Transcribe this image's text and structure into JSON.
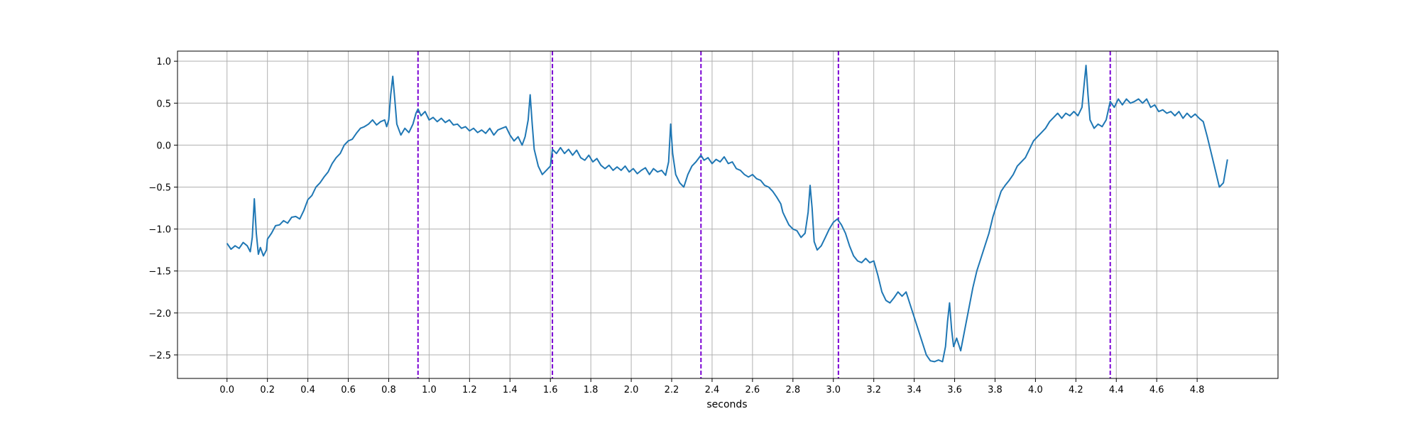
{
  "chart_data": {
    "type": "line",
    "title": "",
    "xlabel": "seconds",
    "ylabel": "",
    "xlim": [
      -0.245,
      5.2
    ],
    "ylim": [
      -2.78,
      1.12
    ],
    "grid": true,
    "x_ticks": [
      0.0,
      0.2,
      0.4,
      0.6,
      0.8,
      1.0,
      1.2,
      1.4,
      1.6,
      1.8,
      2.0,
      2.2,
      2.4,
      2.6,
      2.8,
      3.0,
      3.2,
      3.4,
      3.6,
      3.8,
      4.0,
      4.2,
      4.4,
      4.6,
      4.8
    ],
    "x_tick_labels": [
      "0.0",
      "0.2",
      "0.4",
      "0.6",
      "0.8",
      "1.0",
      "1.2",
      "1.4",
      "1.6",
      "1.8",
      "2.0",
      "2.2",
      "2.4",
      "2.6",
      "2.8",
      "3.0",
      "3.2",
      "3.4",
      "3.6",
      "3.8",
      "4.0",
      "4.2",
      "4.4",
      "4.6",
      "4.8"
    ],
    "y_ticks": [
      1.0,
      0.5,
      0.0,
      -0.5,
      -1.0,
      -1.5,
      -2.0,
      -2.5
    ],
    "y_tick_labels": [
      "1.0",
      "0.5",
      "0.0",
      "−0.5",
      "−1.0",
      "−1.5",
      "−2.0",
      "−2.5"
    ],
    "vertical_markers": {
      "x": [
        0.945,
        1.61,
        2.345,
        3.025,
        4.37
      ],
      "color": "#7b00d4",
      "style": "dashed"
    },
    "series": [
      {
        "color": "#1f77b4",
        "points": [
          [
            0.0,
            -1.17
          ],
          [
            0.02,
            -1.24
          ],
          [
            0.04,
            -1.2
          ],
          [
            0.06,
            -1.23
          ],
          [
            0.08,
            -1.16
          ],
          [
            0.1,
            -1.2
          ],
          [
            0.115,
            -1.27
          ],
          [
            0.125,
            -1.1
          ],
          [
            0.135,
            -0.64
          ],
          [
            0.145,
            -1.05
          ],
          [
            0.155,
            -1.3
          ],
          [
            0.165,
            -1.22
          ],
          [
            0.18,
            -1.32
          ],
          [
            0.195,
            -1.25
          ],
          [
            0.2,
            -1.12
          ],
          [
            0.22,
            -1.05
          ],
          [
            0.24,
            -0.96
          ],
          [
            0.26,
            -0.95
          ],
          [
            0.28,
            -0.9
          ],
          [
            0.3,
            -0.93
          ],
          [
            0.32,
            -0.86
          ],
          [
            0.34,
            -0.85
          ],
          [
            0.36,
            -0.88
          ],
          [
            0.38,
            -0.78
          ],
          [
            0.4,
            -0.65
          ],
          [
            0.42,
            -0.6
          ],
          [
            0.44,
            -0.5
          ],
          [
            0.46,
            -0.45
          ],
          [
            0.48,
            -0.38
          ],
          [
            0.5,
            -0.32
          ],
          [
            0.52,
            -0.22
          ],
          [
            0.54,
            -0.15
          ],
          [
            0.56,
            -0.1
          ],
          [
            0.58,
            0.0
          ],
          [
            0.6,
            0.05
          ],
          [
            0.62,
            0.07
          ],
          [
            0.64,
            0.14
          ],
          [
            0.66,
            0.2
          ],
          [
            0.68,
            0.22
          ],
          [
            0.7,
            0.25
          ],
          [
            0.72,
            0.3
          ],
          [
            0.74,
            0.24
          ],
          [
            0.76,
            0.28
          ],
          [
            0.78,
            0.3
          ],
          [
            0.79,
            0.22
          ],
          [
            0.8,
            0.3
          ],
          [
            0.81,
            0.6
          ],
          [
            0.82,
            0.82
          ],
          [
            0.83,
            0.55
          ],
          [
            0.84,
            0.25
          ],
          [
            0.86,
            0.12
          ],
          [
            0.88,
            0.2
          ],
          [
            0.9,
            0.15
          ],
          [
            0.92,
            0.25
          ],
          [
            0.935,
            0.38
          ],
          [
            0.945,
            0.43
          ],
          [
            0.96,
            0.35
          ],
          [
            0.98,
            0.4
          ],
          [
            1.0,
            0.3
          ],
          [
            1.02,
            0.33
          ],
          [
            1.04,
            0.28
          ],
          [
            1.06,
            0.32
          ],
          [
            1.08,
            0.27
          ],
          [
            1.1,
            0.3
          ],
          [
            1.12,
            0.24
          ],
          [
            1.14,
            0.25
          ],
          [
            1.16,
            0.2
          ],
          [
            1.18,
            0.22
          ],
          [
            1.2,
            0.17
          ],
          [
            1.22,
            0.2
          ],
          [
            1.24,
            0.15
          ],
          [
            1.26,
            0.18
          ],
          [
            1.28,
            0.14
          ],
          [
            1.3,
            0.2
          ],
          [
            1.32,
            0.12
          ],
          [
            1.34,
            0.18
          ],
          [
            1.36,
            0.2
          ],
          [
            1.38,
            0.22
          ],
          [
            1.4,
            0.12
          ],
          [
            1.42,
            0.05
          ],
          [
            1.44,
            0.1
          ],
          [
            1.46,
            0.0
          ],
          [
            1.475,
            0.1
          ],
          [
            1.49,
            0.3
          ],
          [
            1.5,
            0.6
          ],
          [
            1.51,
            0.25
          ],
          [
            1.52,
            -0.05
          ],
          [
            1.54,
            -0.25
          ],
          [
            1.56,
            -0.35
          ],
          [
            1.58,
            -0.3
          ],
          [
            1.6,
            -0.25
          ],
          [
            1.61,
            -0.05
          ],
          [
            1.63,
            -0.1
          ],
          [
            1.65,
            -0.03
          ],
          [
            1.67,
            -0.1
          ],
          [
            1.69,
            -0.05
          ],
          [
            1.71,
            -0.12
          ],
          [
            1.73,
            -0.06
          ],
          [
            1.75,
            -0.15
          ],
          [
            1.77,
            -0.18
          ],
          [
            1.79,
            -0.12
          ],
          [
            1.81,
            -0.2
          ],
          [
            1.83,
            -0.16
          ],
          [
            1.85,
            -0.24
          ],
          [
            1.87,
            -0.28
          ],
          [
            1.89,
            -0.24
          ],
          [
            1.91,
            -0.3
          ],
          [
            1.93,
            -0.26
          ],
          [
            1.95,
            -0.3
          ],
          [
            1.97,
            -0.25
          ],
          [
            1.99,
            -0.32
          ],
          [
            2.01,
            -0.28
          ],
          [
            2.03,
            -0.34
          ],
          [
            2.05,
            -0.3
          ],
          [
            2.07,
            -0.27
          ],
          [
            2.09,
            -0.35
          ],
          [
            2.11,
            -0.28
          ],
          [
            2.13,
            -0.32
          ],
          [
            2.15,
            -0.3
          ],
          [
            2.17,
            -0.36
          ],
          [
            2.185,
            -0.2
          ],
          [
            2.195,
            0.25
          ],
          [
            2.205,
            -0.1
          ],
          [
            2.22,
            -0.35
          ],
          [
            2.24,
            -0.45
          ],
          [
            2.26,
            -0.5
          ],
          [
            2.28,
            -0.35
          ],
          [
            2.3,
            -0.25
          ],
          [
            2.32,
            -0.2
          ],
          [
            2.345,
            -0.12
          ],
          [
            2.36,
            -0.18
          ],
          [
            2.38,
            -0.15
          ],
          [
            2.4,
            -0.22
          ],
          [
            2.42,
            -0.17
          ],
          [
            2.44,
            -0.2
          ],
          [
            2.46,
            -0.14
          ],
          [
            2.48,
            -0.22
          ],
          [
            2.5,
            -0.2
          ],
          [
            2.52,
            -0.28
          ],
          [
            2.54,
            -0.3
          ],
          [
            2.56,
            -0.35
          ],
          [
            2.58,
            -0.38
          ],
          [
            2.6,
            -0.35
          ],
          [
            2.62,
            -0.4
          ],
          [
            2.64,
            -0.42
          ],
          [
            2.66,
            -0.48
          ],
          [
            2.68,
            -0.5
          ],
          [
            2.7,
            -0.55
          ],
          [
            2.72,
            -0.62
          ],
          [
            2.74,
            -0.7
          ],
          [
            2.75,
            -0.8
          ],
          [
            2.76,
            -0.85
          ],
          [
            2.78,
            -0.95
          ],
          [
            2.8,
            -1.0
          ],
          [
            2.82,
            -1.02
          ],
          [
            2.84,
            -1.1
          ],
          [
            2.86,
            -1.05
          ],
          [
            2.875,
            -0.8
          ],
          [
            2.885,
            -0.48
          ],
          [
            2.895,
            -0.75
          ],
          [
            2.905,
            -1.15
          ],
          [
            2.92,
            -1.25
          ],
          [
            2.94,
            -1.2
          ],
          [
            2.96,
            -1.1
          ],
          [
            2.98,
            -1.0
          ],
          [
            3.0,
            -0.92
          ],
          [
            3.02,
            -0.88
          ],
          [
            3.04,
            -0.95
          ],
          [
            3.06,
            -1.05
          ],
          [
            3.08,
            -1.2
          ],
          [
            3.1,
            -1.32
          ],
          [
            3.12,
            -1.38
          ],
          [
            3.14,
            -1.4
          ],
          [
            3.16,
            -1.35
          ],
          [
            3.18,
            -1.4
          ],
          [
            3.2,
            -1.38
          ],
          [
            3.22,
            -1.55
          ],
          [
            3.24,
            -1.75
          ],
          [
            3.26,
            -1.85
          ],
          [
            3.28,
            -1.88
          ],
          [
            3.3,
            -1.82
          ],
          [
            3.32,
            -1.75
          ],
          [
            3.34,
            -1.8
          ],
          [
            3.36,
            -1.75
          ],
          [
            3.38,
            -1.9
          ],
          [
            3.4,
            -2.05
          ],
          [
            3.42,
            -2.2
          ],
          [
            3.44,
            -2.35
          ],
          [
            3.46,
            -2.5
          ],
          [
            3.48,
            -2.57
          ],
          [
            3.5,
            -2.58
          ],
          [
            3.52,
            -2.56
          ],
          [
            3.54,
            -2.58
          ],
          [
            3.555,
            -2.4
          ],
          [
            3.565,
            -2.1
          ],
          [
            3.575,
            -1.88
          ],
          [
            3.585,
            -2.2
          ],
          [
            3.595,
            -2.4
          ],
          [
            3.61,
            -2.3
          ],
          [
            3.63,
            -2.45
          ],
          [
            3.65,
            -2.2
          ],
          [
            3.67,
            -1.95
          ],
          [
            3.69,
            -1.7
          ],
          [
            3.71,
            -1.5
          ],
          [
            3.73,
            -1.35
          ],
          [
            3.75,
            -1.2
          ],
          [
            3.77,
            -1.05
          ],
          [
            3.79,
            -0.85
          ],
          [
            3.81,
            -0.7
          ],
          [
            3.83,
            -0.55
          ],
          [
            3.85,
            -0.48
          ],
          [
            3.87,
            -0.42
          ],
          [
            3.89,
            -0.35
          ],
          [
            3.91,
            -0.25
          ],
          [
            3.93,
            -0.2
          ],
          [
            3.95,
            -0.15
          ],
          [
            3.97,
            -0.05
          ],
          [
            3.99,
            0.05
          ],
          [
            4.01,
            0.1
          ],
          [
            4.03,
            0.15
          ],
          [
            4.05,
            0.2
          ],
          [
            4.07,
            0.28
          ],
          [
            4.09,
            0.33
          ],
          [
            4.11,
            0.38
          ],
          [
            4.13,
            0.32
          ],
          [
            4.15,
            0.38
          ],
          [
            4.17,
            0.35
          ],
          [
            4.19,
            0.4
          ],
          [
            4.21,
            0.35
          ],
          [
            4.23,
            0.45
          ],
          [
            4.24,
            0.7
          ],
          [
            4.25,
            0.95
          ],
          [
            4.26,
            0.6
          ],
          [
            4.27,
            0.3
          ],
          [
            4.29,
            0.2
          ],
          [
            4.31,
            0.25
          ],
          [
            4.33,
            0.22
          ],
          [
            4.35,
            0.3
          ],
          [
            4.37,
            0.52
          ],
          [
            4.39,
            0.45
          ],
          [
            4.41,
            0.55
          ],
          [
            4.43,
            0.48
          ],
          [
            4.45,
            0.55
          ],
          [
            4.47,
            0.5
          ],
          [
            4.49,
            0.52
          ],
          [
            4.51,
            0.55
          ],
          [
            4.53,
            0.5
          ],
          [
            4.55,
            0.55
          ],
          [
            4.57,
            0.45
          ],
          [
            4.59,
            0.48
          ],
          [
            4.61,
            0.4
          ],
          [
            4.63,
            0.42
          ],
          [
            4.65,
            0.38
          ],
          [
            4.67,
            0.4
          ],
          [
            4.69,
            0.35
          ],
          [
            4.71,
            0.4
          ],
          [
            4.73,
            0.32
          ],
          [
            4.75,
            0.38
          ],
          [
            4.77,
            0.33
          ],
          [
            4.79,
            0.37
          ],
          [
            4.81,
            0.32
          ],
          [
            4.83,
            0.28
          ],
          [
            4.85,
            0.1
          ],
          [
            4.87,
            -0.1
          ],
          [
            4.89,
            -0.3
          ],
          [
            4.91,
            -0.5
          ],
          [
            4.93,
            -0.45
          ],
          [
            4.95,
            -0.17
          ]
        ]
      }
    ]
  }
}
